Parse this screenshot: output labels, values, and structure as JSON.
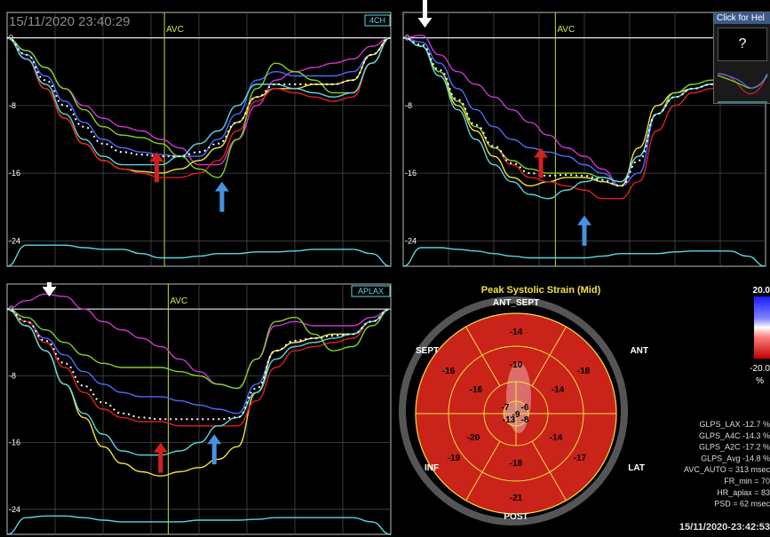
{
  "header": {
    "timestamp": "15/11/2020 23:40:29",
    "help_text": "Click for Hel",
    "help_symbol": "?"
  },
  "footer": {
    "timestamp": "15/11/2020-23:42:53"
  },
  "colors": {
    "background": "#000000",
    "grid": "#4a4a4a",
    "frame": "#bdbdbd",
    "avc_line": "#b8e03a",
    "magenta": "#d033d0",
    "blue": "#4a6bff",
    "yellow": "#f2e23a",
    "red": "#e02020",
    "green": "#7ed321",
    "cyan": "#5ad6e0",
    "white": "#ffffff",
    "arrow_red": "#d42020",
    "arrow_blue": "#4a90e2",
    "arrow_white": "#ffffff"
  },
  "chart_data": [
    {
      "type": "line",
      "view": "4CH",
      "x": [
        0,
        5,
        10,
        15,
        20,
        25,
        30,
        35,
        40,
        45,
        50,
        55,
        60,
        65,
        70,
        75,
        80,
        85,
        90,
        95,
        100
      ],
      "ylim": [
        -27,
        3
      ],
      "yticks": [
        "0",
        "-8",
        "-16",
        "-24"
      ],
      "ytick_values": [
        0,
        -8,
        -16,
        -24
      ],
      "avc_x": 41,
      "avc_label": "AVC",
      "series": [
        {
          "color": "#d033d0",
          "values": [
            0,
            -1.5,
            -3.5,
            -6,
            -8,
            -9.5,
            -10.5,
            -11,
            -12,
            -13,
            -15,
            -15,
            -12,
            -8,
            -5,
            -4,
            -3.5,
            -3,
            -2.5,
            -1,
            0
          ]
        },
        {
          "color": "#4a6bff",
          "values": [
            0,
            -2,
            -4.5,
            -7.5,
            -10,
            -12,
            -13,
            -13.5,
            -13.8,
            -14,
            -14,
            -12,
            -9,
            -5,
            -4,
            -4.5,
            -4.5,
            -4.5,
            -4,
            -2,
            0
          ]
        },
        {
          "color": "#f2e23a",
          "values": [
            0,
            -2.5,
            -6,
            -9.5,
            -12.5,
            -14.5,
            -15.5,
            -15.8,
            -16,
            -15.5,
            -14.5,
            -13,
            -10,
            -7,
            -6,
            -6,
            -5.5,
            -5.5,
            -5,
            -2,
            0
          ]
        },
        {
          "color": "#e02020",
          "values": [
            0,
            -2.5,
            -6,
            -9.5,
            -12.5,
            -14.5,
            -15.5,
            -16,
            -16.5,
            -16.5,
            -16,
            -14.5,
            -11,
            -7.5,
            -6,
            -6.5,
            -7,
            -7.5,
            -7,
            -3,
            0
          ]
        },
        {
          "color": "#7ed321",
          "values": [
            0,
            -1.5,
            -3.5,
            -6,
            -8.5,
            -10.5,
            -11.5,
            -11.8,
            -12.5,
            -14,
            -15.5,
            -16.5,
            -12,
            -6,
            -3,
            -4,
            -5,
            -6.5,
            -6.5,
            -3,
            0
          ]
        },
        {
          "color": "#5ad6e0",
          "values": [
            0,
            -2.5,
            -5.5,
            -9,
            -12,
            -14,
            -15,
            -15,
            -15,
            -14,
            -12.5,
            -11,
            -8,
            -5.5,
            -5.5,
            -6,
            -6.5,
            -7,
            -6.5,
            -3,
            0
          ]
        },
        {
          "color": "#ffffff",
          "dashed": true,
          "values": [
            0,
            -2,
            -5,
            -8,
            -10.5,
            -12.5,
            -13.5,
            -13.8,
            -14,
            -14,
            -13.5,
            -12.5,
            -10,
            -7,
            -5.5,
            -5.5,
            -5.5,
            -5.5,
            -5,
            -2,
            0
          ]
        },
        {
          "color": "#5ad6e0",
          "values": [
            -27,
            -24.5,
            -24.5,
            -24.5,
            -24.8,
            -25,
            -25,
            -25.5,
            -26,
            -26,
            -25.8,
            -25.5,
            -25.5,
            -25.3,
            -25.3,
            -25.2,
            -25,
            -25,
            -25,
            -25.5,
            -27
          ]
        }
      ],
      "arrows": [
        {
          "color": "red",
          "x": 39,
          "y_tip": -13.5
        },
        {
          "color": "blue",
          "x": 56,
          "y_tip": -17
        }
      ]
    },
    {
      "type": "line",
      "view": "",
      "x": [
        0,
        5,
        10,
        15,
        20,
        25,
        30,
        35,
        40,
        45,
        50,
        55,
        60,
        65,
        70,
        75,
        80,
        85,
        90,
        95,
        100
      ],
      "ylim": [
        -27,
        3
      ],
      "yticks": [
        "0",
        "-8",
        "-16",
        "-24"
      ],
      "ytick_values": [
        0,
        -8,
        -16,
        -24
      ],
      "avc_x": 42,
      "avc_label": "AVC",
      "series": [
        {
          "color": "#d033d0",
          "values": [
            0,
            0.3,
            -2,
            -4,
            -5.5,
            -7,
            -8.5,
            -10,
            -11.5,
            -13,
            -14,
            -15.5,
            -17.5,
            -14,
            -9,
            -7,
            -6,
            -5.5,
            -5,
            -2,
            0
          ]
        },
        {
          "color": "#4a6bff",
          "values": [
            0,
            -0.5,
            -3,
            -6,
            -8.5,
            -10.5,
            -12,
            -13,
            -13.5,
            -14,
            -15,
            -16,
            -17.5,
            -16,
            -9,
            -7,
            -6,
            -5.5,
            -5,
            -2,
            0
          ]
        },
        {
          "color": "#f2e23a",
          "values": [
            0,
            -1,
            -4,
            -8,
            -11,
            -14,
            -16.5,
            -17.5,
            -17,
            -16.5,
            -16.5,
            -17,
            -17.5,
            -13,
            -8,
            -6.5,
            -6,
            -5.5,
            -5,
            -2,
            0
          ]
        },
        {
          "color": "#e02020",
          "values": [
            0,
            -1,
            -4,
            -7.5,
            -10.5,
            -13,
            -15,
            -16.5,
            -17,
            -17.5,
            -18,
            -19,
            -19,
            -17,
            -11,
            -8,
            -6.5,
            -6,
            -5,
            -2,
            0
          ]
        },
        {
          "color": "#7ed321",
          "values": [
            0,
            -1,
            -4,
            -7.5,
            -10.5,
            -13,
            -14.5,
            -15.5,
            -16,
            -16,
            -16,
            -16.5,
            -17,
            -14,
            -9,
            -6.5,
            -5.5,
            -5,
            -4.5,
            -2,
            0
          ]
        },
        {
          "color": "#5ad6e0",
          "values": [
            0,
            -1,
            -4.5,
            -8.5,
            -12,
            -15,
            -17,
            -18.5,
            -19,
            -18,
            -17,
            -16.5,
            -17,
            -14,
            -9,
            -7,
            -6,
            -5.5,
            -5,
            -2,
            0
          ]
        },
        {
          "color": "#ffffff",
          "dashed": true,
          "values": [
            0,
            -0.8,
            -3.8,
            -7.3,
            -10.3,
            -12.8,
            -14.8,
            -16,
            -16.3,
            -16.2,
            -16.3,
            -16.8,
            -17.5,
            -14.5,
            -9,
            -7,
            -6,
            -5.5,
            -5,
            -2,
            0
          ]
        },
        {
          "color": "#5ad6e0",
          "values": [
            -27,
            -24.8,
            -24.8,
            -25,
            -25.2,
            -25.5,
            -25.8,
            -26,
            -26,
            -26,
            -26,
            -25.8,
            -25.5,
            -25.5,
            -25.5,
            -25.3,
            -25.2,
            -25.2,
            -25.2,
            -25.8,
            -27
          ]
        }
      ],
      "arrows": [
        {
          "color": "white",
          "x": 6,
          "y_tip": 1.2
        },
        {
          "color": "red",
          "x": 38,
          "y_tip": -13
        },
        {
          "color": "blue",
          "x": 50,
          "y_tip": -21
        }
      ]
    },
    {
      "type": "line",
      "view": "APLAX",
      "x": [
        0,
        5,
        10,
        15,
        20,
        25,
        30,
        35,
        40,
        45,
        50,
        55,
        60,
        65,
        70,
        75,
        80,
        85,
        90,
        95,
        100
      ],
      "ylim": [
        -27,
        3
      ],
      "yticks": [
        "0",
        "-8",
        "-16",
        "-24"
      ],
      "ytick_values": [
        0,
        -8,
        -16,
        -24
      ],
      "avc_x": 42,
      "avc_label": "AVC",
      "series": [
        {
          "color": "#d033d0",
          "values": [
            0,
            1,
            1.8,
            1.5,
            0,
            -1.5,
            -2.5,
            -3.5,
            -4.5,
            -6,
            -7.5,
            -9,
            -9.5,
            -6,
            -2,
            -1.5,
            -2,
            -2,
            -2,
            -1,
            0
          ]
        },
        {
          "color": "#4a6bff",
          "values": [
            0,
            -1.5,
            -3.5,
            -5.5,
            -7.5,
            -9,
            -10,
            -10.5,
            -10.5,
            -11,
            -11.5,
            -12,
            -12.5,
            -9,
            -5,
            -4,
            -3.5,
            -3,
            -3,
            -1.5,
            0
          ]
        },
        {
          "color": "#f2e23a",
          "values": [
            0,
            -2,
            -5,
            -9,
            -13,
            -16.5,
            -18.5,
            -19.5,
            -20,
            -19.5,
            -19,
            -18,
            -16.5,
            -10,
            -5,
            -4,
            -3.5,
            -3,
            -3,
            -1.5,
            0
          ]
        },
        {
          "color": "#e02020",
          "values": [
            0,
            -1.5,
            -4,
            -7,
            -10,
            -12,
            -13,
            -13.5,
            -13.5,
            -14,
            -14,
            -14,
            -14,
            -11,
            -7,
            -5,
            -4.5,
            -4,
            -3.5,
            -1.5,
            0
          ]
        },
        {
          "color": "#7ed321",
          "values": [
            0,
            -1,
            -2.5,
            -4,
            -5.5,
            -6.5,
            -7,
            -7,
            -7,
            -7.5,
            -8,
            -9,
            -9.5,
            -6,
            -1.5,
            -1,
            -3,
            -5,
            -4.5,
            -2,
            0
          ]
        },
        {
          "color": "#5ad6e0",
          "values": [
            0,
            -2,
            -5,
            -9,
            -12.5,
            -15,
            -17,
            -17.5,
            -17.5,
            -17,
            -16,
            -14,
            -13,
            -10,
            -6,
            -4.5,
            -4,
            -3.5,
            -3,
            -1.5,
            0
          ]
        },
        {
          "color": "#ffffff",
          "dashed": true,
          "values": [
            0,
            -1.5,
            -3.8,
            -6.5,
            -9.2,
            -11.2,
            -12.5,
            -13,
            -13.2,
            -13.2,
            -13.2,
            -13.2,
            -13,
            -9.5,
            -5,
            -3.8,
            -3.5,
            -3.2,
            -3,
            -1.5,
            0
          ]
        },
        {
          "color": "#5ad6e0",
          "values": [
            -27,
            -25,
            -24.8,
            -24.8,
            -25,
            -25.3,
            -25.5,
            -25.5,
            -25.5,
            -25.5,
            -25.3,
            -25.3,
            -25.3,
            -25.2,
            -25,
            -25,
            -25,
            -25,
            -25,
            -25.5,
            -27
          ]
        }
      ],
      "arrows": [
        {
          "color": "white",
          "x": 11,
          "y_tip": 1.5
        },
        {
          "color": "red",
          "x": 40,
          "y_tip": -16
        },
        {
          "color": "blue",
          "x": 54,
          "y_tip": -15
        }
      ]
    },
    {
      "type": "bullseye",
      "title": "Peak Systolic Strain (Mid)",
      "outer_labels": {
        "top": "ANT_SEPT",
        "top_left": "SEPT",
        "top_right": "ANT",
        "bottom_left": "INF",
        "bottom_right": "LAT",
        "bottom": "POST"
      },
      "segments": {
        "basal": [
          "-14",
          "-18",
          "-17",
          "-21",
          "-19",
          "-16"
        ],
        "mid": [
          "-10",
          "-14",
          "-14",
          "-18",
          "-20",
          "-16"
        ],
        "apical": [
          "-6",
          "-8",
          "-13",
          "-7"
        ],
        "apex": "-9"
      },
      "colorbar": {
        "max": "20.0",
        "min": "-20.0",
        "unit": "%"
      },
      "stats": [
        {
          "label": "GLPS_LAX",
          "value": "-12.7 %"
        },
        {
          "label": "GLPS_A4C",
          "value": "-14.3 %"
        },
        {
          "label": "GLPS_A2C",
          "value": "-17.2 %"
        },
        {
          "label": "GLPS_Avg",
          "value": "-14.8 %"
        },
        {
          "label": "AVC_AUTO =",
          "value": "313 msec"
        },
        {
          "label": "FR_min =",
          "value": "70"
        },
        {
          "label": "HR_aplax =",
          "value": "83"
        },
        {
          "label": "PSD =",
          "value": "62 msec"
        }
      ]
    }
  ]
}
